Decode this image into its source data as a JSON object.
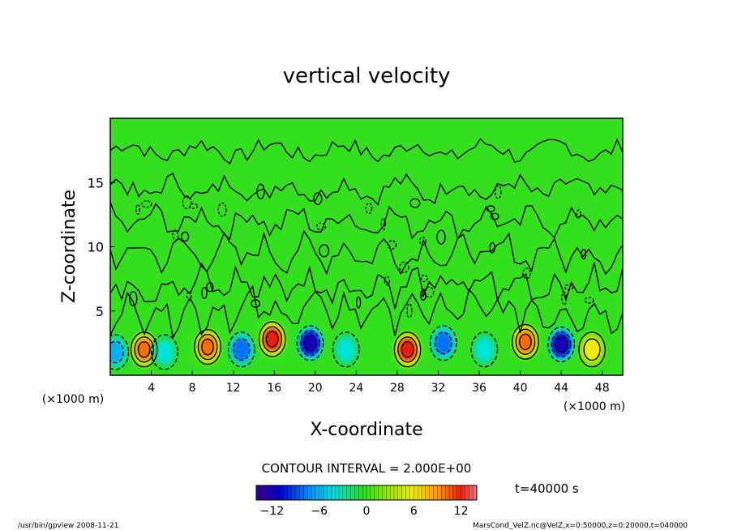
{
  "chart_data": {
    "type": "heatmap",
    "title": "vertical velocity",
    "xlabel": "X-coordinate",
    "ylabel": "Z-coordinate",
    "x_unit_label": "(×1000 m)",
    "y_unit_label": "(×1000 m)",
    "xlim": [
      0,
      50
    ],
    "ylim": [
      0,
      20
    ],
    "x_ticks": [
      4,
      8,
      12,
      16,
      20,
      24,
      28,
      32,
      36,
      40,
      44,
      48
    ],
    "y_ticks": [
      5,
      10,
      15
    ],
    "contour_interval_text": "CONTOUR INTERVAL = 2.000E+00",
    "time_text": "t=40000 s",
    "colorbar_range": [
      -14,
      14
    ],
    "colorbar_ticks": [
      -12,
      -6,
      0,
      6,
      12
    ],
    "cells": [
      {
        "x": 0.5,
        "z": 1.8,
        "w": -6
      },
      {
        "x": 3.3,
        "z": 2.0,
        "w": 10
      },
      {
        "x": 5.3,
        "z": 1.8,
        "w": -4
      },
      {
        "x": 9.5,
        "z": 2.2,
        "w": 10
      },
      {
        "x": 12.8,
        "z": 2.0,
        "w": -8
      },
      {
        "x": 15.8,
        "z": 2.8,
        "w": 12
      },
      {
        "x": 19.5,
        "z": 2.5,
        "w": -12
      },
      {
        "x": 23.0,
        "z": 2.0,
        "w": -4
      },
      {
        "x": 29.0,
        "z": 2.0,
        "w": 12
      },
      {
        "x": 32.5,
        "z": 2.5,
        "w": -8
      },
      {
        "x": 36.5,
        "z": 2.0,
        "w": -4
      },
      {
        "x": 40.5,
        "z": 2.6,
        "w": 10
      },
      {
        "x": 44.0,
        "z": 2.4,
        "w": -12
      },
      {
        "x": 47.0,
        "z": 2.0,
        "w": 6
      }
    ]
  },
  "footer": {
    "program": "/usr/bin/gpview   2008-11-21",
    "source": "MarsCond_VelZ.nc@VelZ,x=0:50000,z=0:20000,t=040000"
  },
  "colors": {
    "background": "#ffffff",
    "field_base": "#34e01e"
  }
}
